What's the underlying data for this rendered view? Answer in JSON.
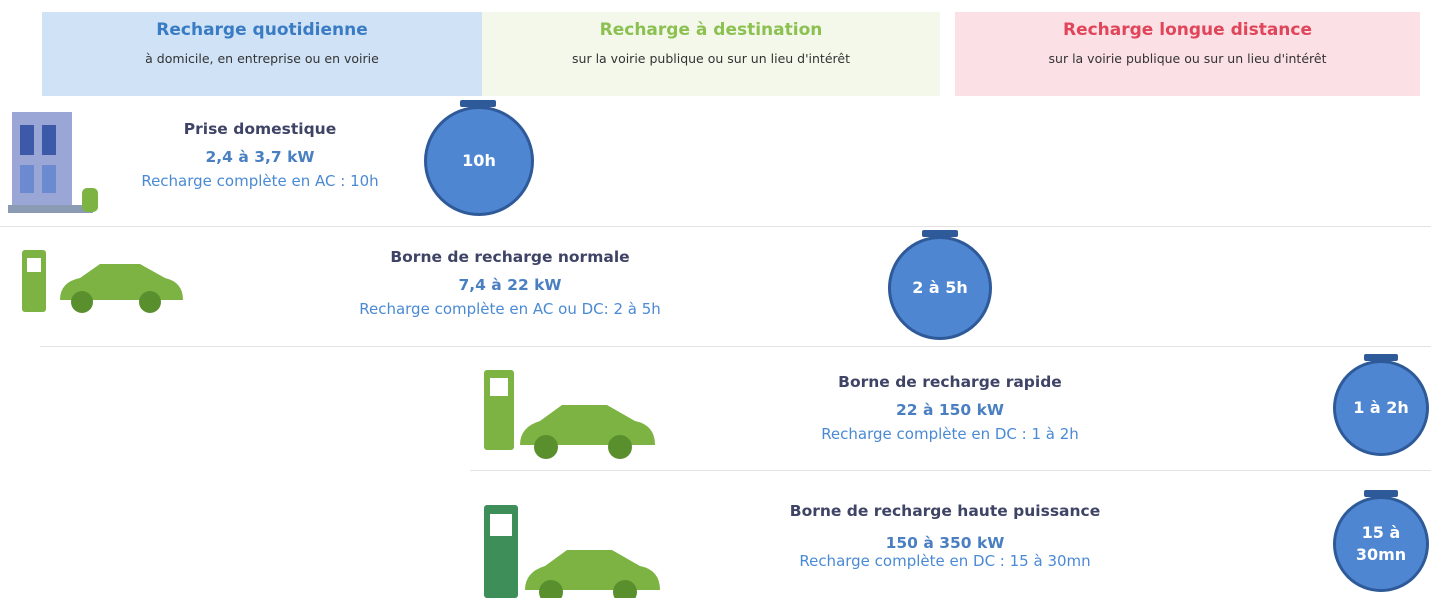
{
  "headers": [
    {
      "title": "Recharge quotidienne",
      "subtitle": "à domicile, en entreprise ou en voirie"
    },
    {
      "title": "Recharge à destination",
      "subtitle": "sur la voirie publique ou sur un lieu d'intérêt"
    },
    {
      "title": "Recharge longue distance",
      "subtitle": "sur la voirie publique ou sur un lieu d'intérêt"
    }
  ],
  "rows": [
    {
      "name": "Prise domestique",
      "power": "2,4 à 3,7 kW",
      "detail": "Recharge complète en AC : 10h",
      "time": "10h"
    },
    {
      "name": "Borne de recharge normale",
      "power": "7,4 à 22 kW",
      "detail": "Recharge complète en AC ou DC: 2 à 5h",
      "time": "2 à 5h"
    },
    {
      "name": "Borne de recharge rapide",
      "power": "22 à 150 kW",
      "detail": "Recharge complète en DC : 1 à 2h",
      "time": "1 à 2h"
    },
    {
      "name": "Borne de recharge haute puissance",
      "power": "150 à 350 kW",
      "detail": "Recharge complète en DC : 15 à 30mn",
      "time": "15 à 30mn"
    }
  ]
}
